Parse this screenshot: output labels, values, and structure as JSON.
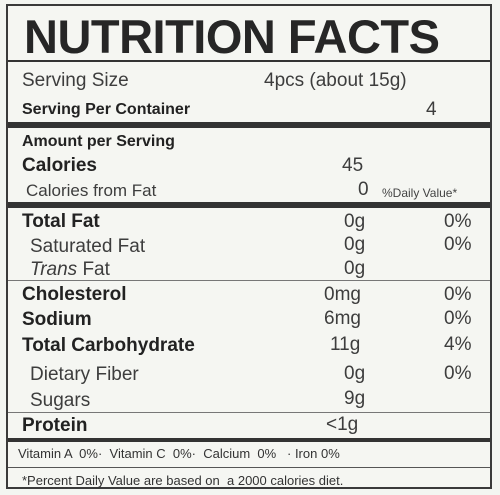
{
  "title": "NUTRITION FACTS",
  "serving_size": {
    "label": "Serving Size",
    "value": "4pcs (about 15g)"
  },
  "servings_per_container": {
    "label": "Serving Per Container",
    "value": "4"
  },
  "amount_per_serving": "Amount per Serving",
  "calories": {
    "label": "Calories",
    "value": "45"
  },
  "calories_from_fat": {
    "label": "Calories from Fat",
    "value": "0"
  },
  "daily_value_header": "%Daily Value*",
  "nutrients": [
    {
      "label": "Total Fat",
      "amount": "0g",
      "dv": "0%"
    },
    {
      "label": "Saturated Fat",
      "amount": "0g",
      "dv": "0%"
    },
    {
      "label_italic": "Trans",
      "label_rest": " Fat",
      "amount": "0g",
      "dv": ""
    },
    {
      "label": "Cholesterol",
      "amount": "0mg",
      "dv": "0%"
    },
    {
      "label": "Sodium",
      "amount": "6mg",
      "dv": "0%"
    },
    {
      "label": "Total Carbohydrate",
      "amount": "11g",
      "dv": "4%"
    },
    {
      "label": "Dietary Fiber",
      "amount": "0g",
      "dv": "0%"
    },
    {
      "label": "Sugars",
      "amount": "9g",
      "dv": ""
    },
    {
      "label": "Protein",
      "amount": "<1g",
      "dv": ""
    }
  ],
  "vitamins": "Vitamin A  0%·  Vitamin C  0%·  Calcium  0%   · Iron 0%",
  "footnote": "*Percent Daily Value are based on  a 2000 calories diet."
}
